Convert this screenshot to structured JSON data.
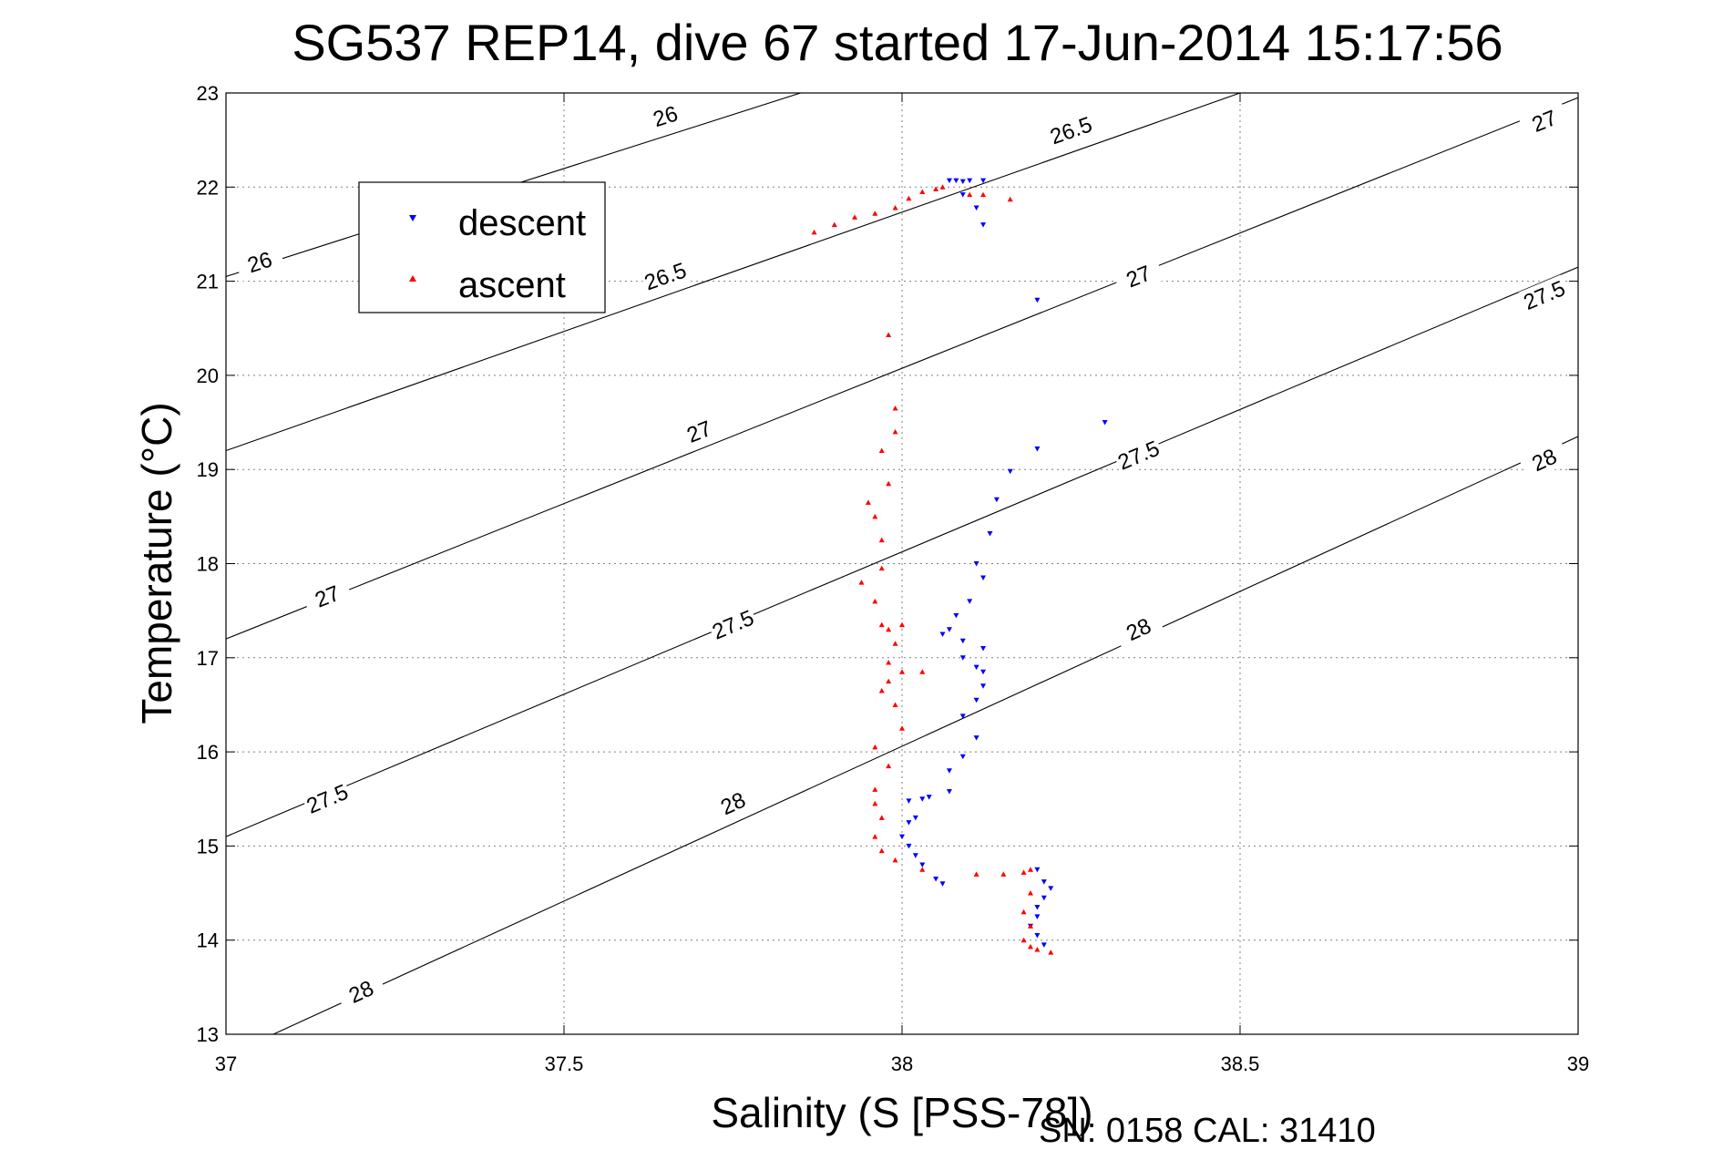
{
  "chart_data": {
    "type": "scatter",
    "title": "SG537 REP14, dive 67 started 17-Jun-2014 15:17:56",
    "xlabel": "Salinity (S [PSS-78])",
    "ylabel": "Temperature (°C)",
    "footer": "SN: 0158  CAL: 31410",
    "xlim": [
      37,
      39
    ],
    "ylim": [
      13,
      23
    ],
    "x_ticks": [
      37,
      37.5,
      38,
      38.5,
      39
    ],
    "x_tick_labels": [
      "37",
      "37.5",
      "38",
      "38.5",
      "39"
    ],
    "y_ticks": [
      13,
      14,
      15,
      16,
      17,
      18,
      19,
      20,
      21,
      22,
      23
    ],
    "y_tick_labels": [
      "13",
      "14",
      "15",
      "16",
      "17",
      "18",
      "19",
      "20",
      "21",
      "22",
      "23"
    ],
    "grid": true,
    "legend_position": "top-left",
    "contour_lines": [
      {
        "label": "26",
        "endpoints": [
          [
            37,
            21.05
          ],
          [
            37.85,
            23.0
          ]
        ],
        "label_positions": [
          [
            37.05,
            21.2
          ],
          [
            37.65,
            22.75
          ]
        ]
      },
      {
        "label": "26.5",
        "endpoints": [
          [
            37,
            19.2
          ],
          [
            38.5,
            23.0
          ]
        ],
        "label_positions": [
          [
            37.65,
            21.05
          ],
          [
            38.25,
            22.6
          ]
        ]
      },
      {
        "label": "27",
        "endpoints": [
          [
            37,
            17.2
          ],
          [
            39,
            22.95
          ]
        ],
        "label_positions": [
          [
            37.15,
            17.65
          ],
          [
            37.7,
            19.4
          ],
          [
            38.35,
            21.05
          ],
          [
            38.95,
            22.7
          ]
        ]
      },
      {
        "label": "27.5",
        "endpoints": [
          [
            37,
            15.1
          ],
          [
            39,
            21.15
          ]
        ],
        "label_positions": [
          [
            37.15,
            15.5
          ],
          [
            37.75,
            17.35
          ],
          [
            38.35,
            19.15
          ],
          [
            38.95,
            20.85
          ]
        ]
      },
      {
        "label": "28",
        "endpoints": [
          [
            37.07,
            13.0
          ],
          [
            39,
            19.35
          ]
        ],
        "label_positions": [
          [
            37.2,
            13.45
          ],
          [
            37.75,
            15.45
          ],
          [
            38.35,
            17.3
          ],
          [
            38.95,
            19.1
          ]
        ]
      }
    ],
    "series": [
      {
        "name": "descent",
        "color": "#0000ff",
        "marker": "triangle-down",
        "points": [
          [
            38.07,
            22.07
          ],
          [
            38.08,
            22.07
          ],
          [
            38.09,
            22.06
          ],
          [
            38.1,
            22.07
          ],
          [
            38.12,
            22.07
          ],
          [
            38.09,
            21.92
          ],
          [
            38.11,
            21.78
          ],
          [
            38.12,
            21.6
          ],
          [
            38.2,
            20.8
          ],
          [
            38.3,
            19.5
          ],
          [
            38.2,
            19.22
          ],
          [
            38.16,
            18.98
          ],
          [
            38.14,
            18.68
          ],
          [
            38.13,
            18.32
          ],
          [
            38.11,
            18.0
          ],
          [
            38.12,
            17.85
          ],
          [
            38.1,
            17.6
          ],
          [
            38.08,
            17.45
          ],
          [
            38.07,
            17.3
          ],
          [
            38.06,
            17.25
          ],
          [
            38.09,
            17.18
          ],
          [
            38.12,
            17.1
          ],
          [
            38.09,
            17.0
          ],
          [
            38.11,
            16.9
          ],
          [
            38.12,
            16.85
          ],
          [
            38.12,
            16.7
          ],
          [
            38.11,
            16.55
          ],
          [
            38.09,
            16.38
          ],
          [
            38.11,
            16.15
          ],
          [
            38.09,
            15.95
          ],
          [
            38.07,
            15.8
          ],
          [
            38.07,
            15.58
          ],
          [
            38.04,
            15.52
          ],
          [
            38.03,
            15.5
          ],
          [
            38.01,
            15.48
          ],
          [
            38.02,
            15.3
          ],
          [
            38.01,
            15.25
          ],
          [
            38.0,
            15.1
          ],
          [
            38.01,
            15.0
          ],
          [
            38.02,
            14.9
          ],
          [
            38.03,
            14.8
          ],
          [
            38.05,
            14.65
          ],
          [
            38.06,
            14.6
          ],
          [
            38.2,
            14.75
          ],
          [
            38.21,
            14.62
          ],
          [
            38.22,
            14.55
          ],
          [
            38.21,
            14.45
          ],
          [
            38.2,
            14.35
          ],
          [
            38.2,
            14.25
          ],
          [
            38.19,
            14.15
          ],
          [
            38.2,
            14.05
          ],
          [
            38.21,
            13.95
          ]
        ]
      },
      {
        "name": "ascent",
        "color": "#ff0000",
        "marker": "triangle-up",
        "points": [
          [
            37.87,
            21.52
          ],
          [
            37.9,
            21.6
          ],
          [
            37.93,
            21.68
          ],
          [
            37.96,
            21.72
          ],
          [
            37.99,
            21.78
          ],
          [
            38.01,
            21.88
          ],
          [
            38.03,
            21.95
          ],
          [
            38.05,
            21.98
          ],
          [
            38.06,
            22.0
          ],
          [
            38.1,
            21.92
          ],
          [
            38.12,
            21.92
          ],
          [
            38.16,
            21.87
          ],
          [
            37.98,
            20.43
          ],
          [
            37.99,
            19.65
          ],
          [
            37.99,
            19.4
          ],
          [
            37.97,
            19.2
          ],
          [
            37.98,
            18.85
          ],
          [
            37.95,
            18.65
          ],
          [
            37.96,
            18.5
          ],
          [
            37.97,
            18.25
          ],
          [
            37.97,
            17.95
          ],
          [
            37.94,
            17.8
          ],
          [
            37.96,
            17.6
          ],
          [
            37.97,
            17.35
          ],
          [
            37.98,
            17.3
          ],
          [
            38.0,
            17.35
          ],
          [
            37.99,
            17.15
          ],
          [
            37.98,
            16.95
          ],
          [
            38.0,
            16.85
          ],
          [
            38.03,
            16.85
          ],
          [
            37.98,
            16.75
          ],
          [
            37.97,
            16.65
          ],
          [
            37.99,
            16.5
          ],
          [
            38.0,
            16.25
          ],
          [
            37.96,
            16.05
          ],
          [
            37.98,
            15.85
          ],
          [
            37.96,
            15.6
          ],
          [
            37.96,
            15.45
          ],
          [
            37.97,
            15.3
          ],
          [
            37.96,
            15.1
          ],
          [
            37.97,
            14.95
          ],
          [
            37.99,
            14.85
          ],
          [
            38.03,
            14.75
          ],
          [
            38.11,
            14.7
          ],
          [
            38.15,
            14.7
          ],
          [
            38.18,
            14.72
          ],
          [
            38.19,
            14.75
          ],
          [
            38.19,
            14.5
          ],
          [
            38.18,
            14.3
          ],
          [
            38.19,
            14.15
          ],
          [
            38.18,
            14.0
          ],
          [
            38.19,
            13.93
          ],
          [
            38.2,
            13.9
          ],
          [
            38.22,
            13.87
          ]
        ]
      }
    ]
  }
}
